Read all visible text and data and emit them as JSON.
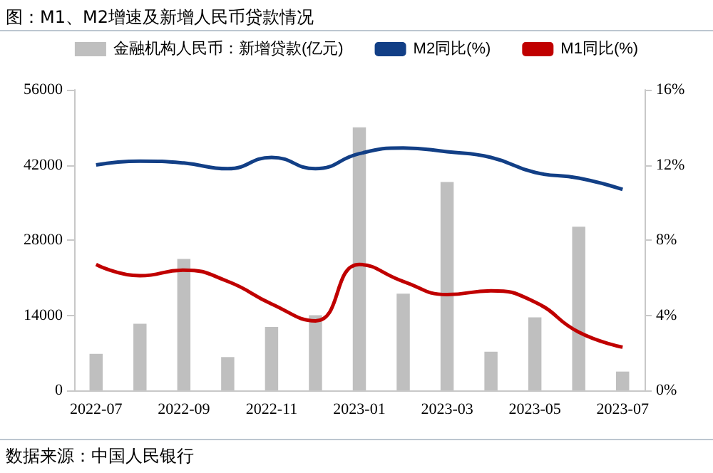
{
  "chart_data": {
    "type": "bar",
    "title": "图：M1、M2增速及新增人民币贷款情况",
    "annotations": [
      "数据来源：中国人民银行"
    ],
    "categories": [
      "2022-07",
      null,
      "2022-09",
      null,
      "2022-11",
      null,
      "2023-01",
      null,
      "2023-03",
      null,
      "2023-05",
      null,
      "2023-07"
    ],
    "series": [
      {
        "name": "金融机构人民币：新增贷款(亿元)",
        "color": "#bfbfbf",
        "values": [
          6800,
          12400,
          24500,
          6200,
          11800,
          14000,
          49000,
          18000,
          38800,
          7200,
          13600,
          30500,
          3500
        ]
      },
      {
        "name": "M2同比(%)",
        "type": "line",
        "axis": "y2",
        "color": "#123f86",
        "values": [
          12.0,
          12.2,
          12.1,
          11.8,
          12.4,
          11.8,
          12.6,
          12.9,
          12.7,
          12.4,
          11.6,
          11.3,
          10.7
        ]
      },
      {
        "name": "M1同比(%)",
        "type": "line",
        "axis": "y2",
        "color": "#c00000",
        "values": [
          6.7,
          6.1,
          6.4,
          5.8,
          4.6,
          3.7,
          6.7,
          5.8,
          5.1,
          5.3,
          4.7,
          3.1,
          2.3
        ]
      }
    ],
    "ylim": [
      0,
      56000
    ],
    "yticks": [
      0,
      14000,
      28000,
      42000,
      56000
    ],
    "y2lim": [
      0,
      16
    ],
    "y2ticks": [
      {
        "value": 0,
        "label": "0%"
      },
      {
        "value": 4,
        "label": "4%"
      },
      {
        "value": 8,
        "label": "8%"
      },
      {
        "value": 12,
        "label": "12%"
      },
      {
        "value": 16,
        "label": "16%"
      }
    ],
    "legend": "top",
    "grid": false,
    "marker": "none",
    "line_style": "solid"
  }
}
